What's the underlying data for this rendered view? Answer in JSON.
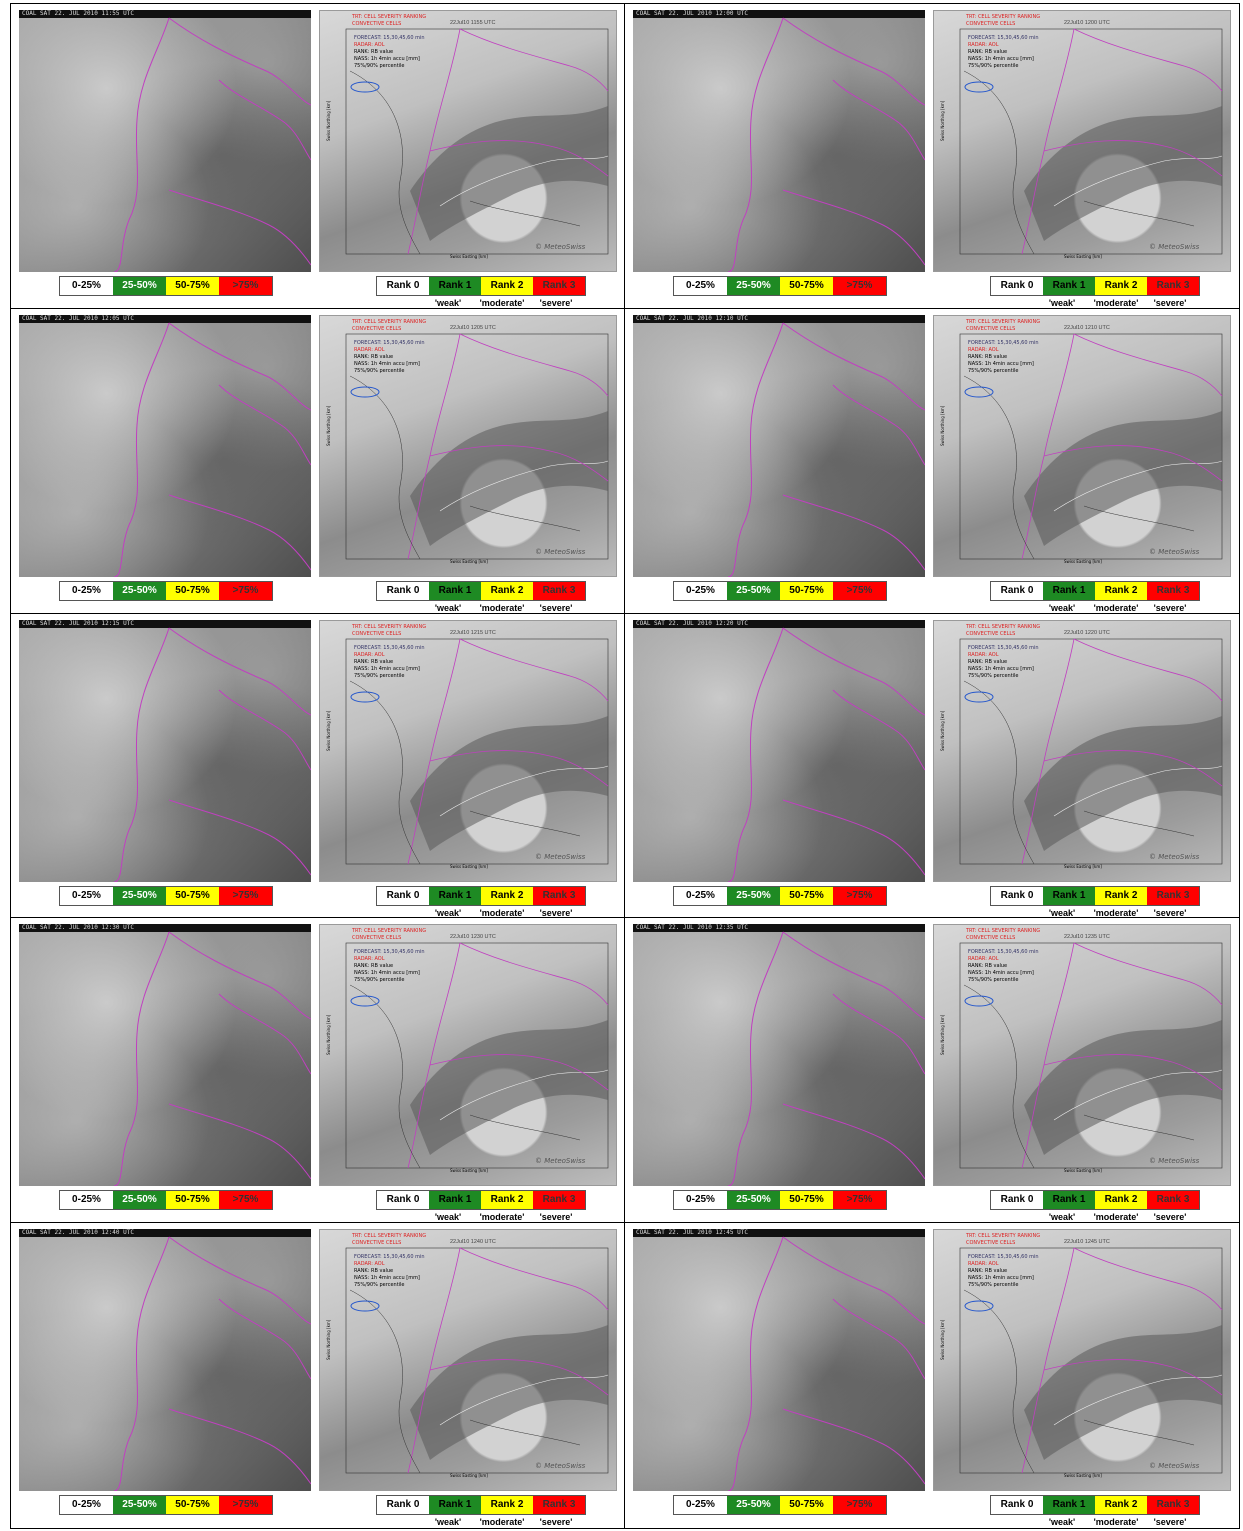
{
  "legend_left": [
    "0-25%",
    "25-50%",
    "50-75%",
    ">75%"
  ],
  "legend_right": [
    "Rank 0",
    "Rank 1",
    "Rank 2",
    "Rank 3"
  ],
  "severity_labels": [
    "'weak'",
    "'moderate'",
    "'severe'"
  ],
  "radar_text": {
    "title": "TRT: CELL SEVERITY RANKING",
    "convective": "CONVECTIVE CELLS",
    "forecast": "FORECAST: 15,30,45,60 min",
    "radar": "RADAR: AOL",
    "rank": "RANK: RB value",
    "nass": "NASS: 1h 4min accu [mm]",
    "percentile": "75%/90% percentile",
    "brand": "© MeteoSwiss",
    "xaxis": "Swiss Easting [km]",
    "yaxis": "Swiss Northing [km]"
  },
  "colors": {
    "yellow": "#ffff00",
    "green": "#1e8a23",
    "red": "#ff0000",
    "border": "#c040c0"
  },
  "panels": [
    {
      "sat_header": "COAL SAT 22. JUL 2010 11:55 UTC",
      "radar_time": "22Jul10 1155 UTC",
      "cell": "none",
      "radar_cell": "none"
    },
    {
      "sat_header": "COAL SAT 22. JUL 2010 12:00 UTC",
      "radar_time": "22Jul10 1200 UTC",
      "cell": "yellow",
      "radar_cell": "none"
    },
    {
      "sat_header": "COAL SAT 22. JUL 2010 12:05 UTC",
      "radar_time": "22Jul10 1205 UTC",
      "cell": "yellow",
      "radar_cell": "green"
    },
    {
      "sat_header": "COAL SAT 22. JUL 2010 12:10 UTC",
      "radar_time": "22Jul10 1210 UTC",
      "cell": "yellow",
      "radar_cell": "green"
    },
    {
      "sat_header": "COAL SAT 22. JUL 2010 12:15 UTC",
      "radar_time": "22Jul10 1215 UTC",
      "cell": "green",
      "radar_cell": "green"
    },
    {
      "sat_header": "COAL SAT 22. JUL 2010 12:20 UTC",
      "radar_time": "22Jul10 1220 UTC",
      "cell": "green",
      "radar_cell": "green"
    },
    {
      "sat_header": "COAL SAT 22. JUL 2010 12:30 UTC",
      "radar_time": "22Jul10 1230 UTC",
      "cell": "green",
      "radar_cell": "yellow"
    },
    {
      "sat_header": "COAL SAT 22. JUL 2010 12:35 UTC",
      "radar_time": "22Jul10 1235 UTC",
      "cell": "yellow",
      "radar_cell": "yellow"
    },
    {
      "sat_header": "COAL SAT 22. JUL 2010 12:40 UTC",
      "radar_time": "22Jul10 1240 UTC",
      "cell": "yellow",
      "radar_cell": "yellow"
    },
    {
      "sat_header": "COAL SAT 22. JUL 2010 12:45 UTC",
      "radar_time": "22Jul10 1245 UTC",
      "cell": "red",
      "radar_cell": "red"
    }
  ]
}
